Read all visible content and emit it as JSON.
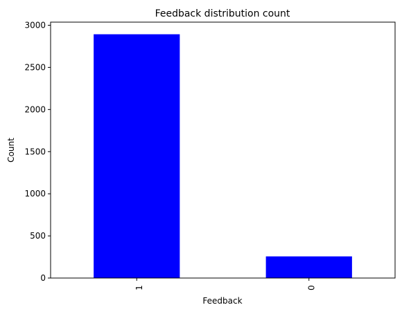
{
  "chart_data": {
    "type": "bar",
    "title": "Feedback distribution count",
    "xlabel": "Feedback",
    "ylabel": "Count",
    "categories": [
      "1",
      "0"
    ],
    "values": [
      2893,
      257
    ],
    "ylim": [
      0,
      3037
    ],
    "yticks": [
      0,
      500,
      1000,
      1500,
      2000,
      2500,
      3000
    ],
    "bar_color": "#0000ff",
    "grid": false,
    "legend": "none",
    "x_tick_rotation": "vertical"
  }
}
